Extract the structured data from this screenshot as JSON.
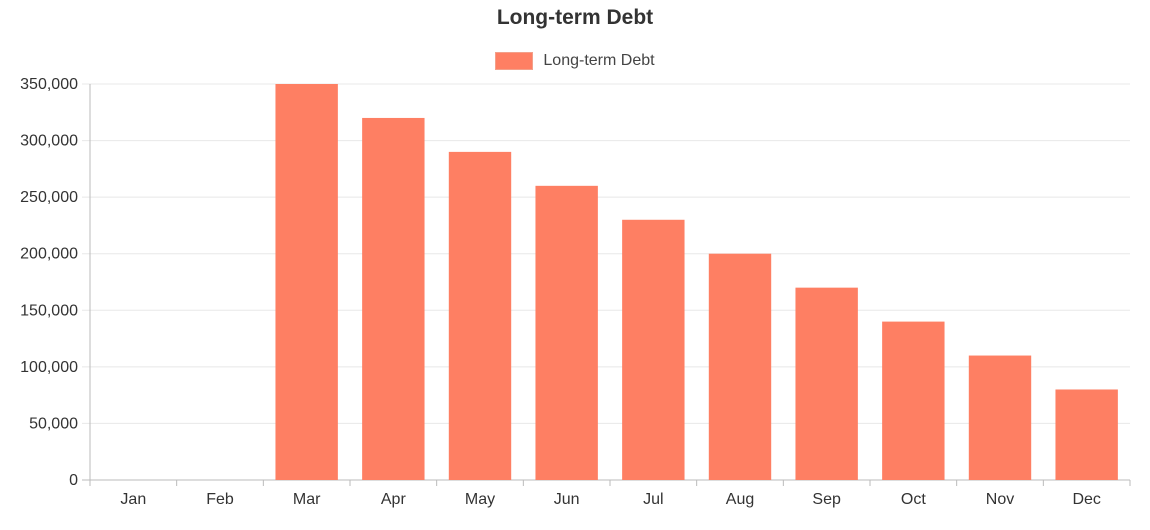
{
  "chart_data": {
    "type": "bar",
    "title": "Long-term Debt",
    "categories": [
      "Jan",
      "Feb",
      "Mar",
      "Apr",
      "May",
      "Jun",
      "Jul",
      "Aug",
      "Sep",
      "Oct",
      "Nov",
      "Dec"
    ],
    "series": [
      {
        "name": "Long-term Debt",
        "values": [
          0,
          0,
          350000,
          320000,
          290000,
          260000,
          230000,
          200000,
          170000,
          140000,
          110000,
          80000
        ]
      }
    ],
    "y_ticks": [
      "0",
      "50,000",
      "100,000",
      "150,000",
      "200,000",
      "250,000",
      "300,000",
      "350,000"
    ],
    "ylim": [
      0,
      350000
    ],
    "xlabel": "",
    "ylabel": "",
    "grid": true,
    "legend_position": "top",
    "colors": {
      "bar": "#fe7f63",
      "grid": "#e8e8e8",
      "axis": "#bbbbbb"
    }
  }
}
